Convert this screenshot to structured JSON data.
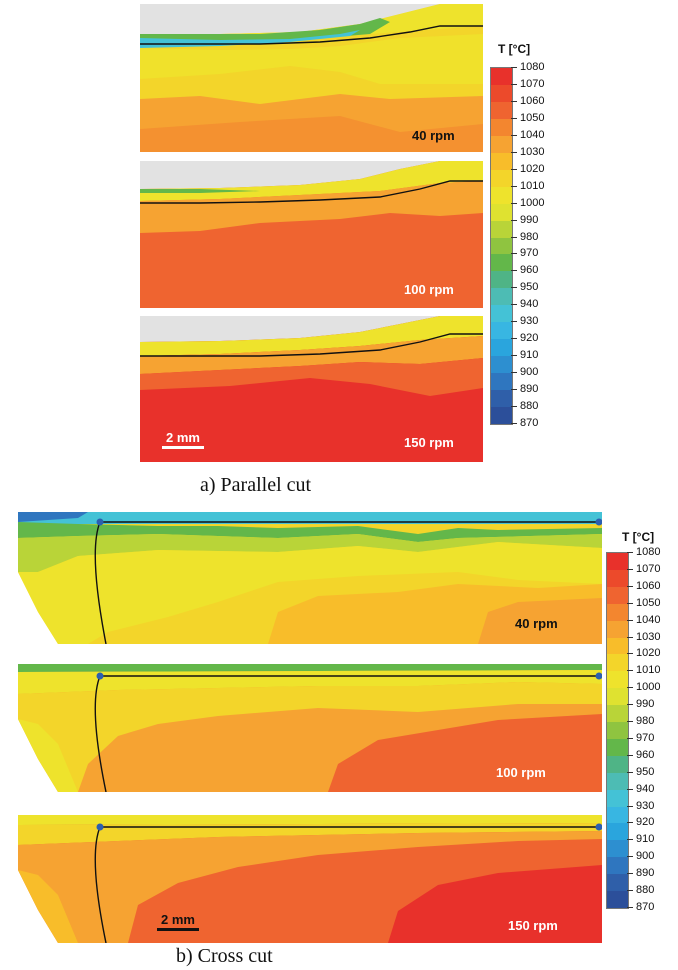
{
  "figure": {
    "part_a": {
      "caption": "a) Parallel cut",
      "panels": [
        {
          "label": "40 rpm",
          "label_dark": true
        },
        {
          "label": "100 rpm",
          "label_dark": false
        },
        {
          "label": "150 rpm",
          "label_dark": false
        }
      ],
      "scale_bar": "2 mm"
    },
    "part_b": {
      "caption": "b) Cross cut",
      "panels": [
        {
          "label": "40 rpm",
          "label_dark": true
        },
        {
          "label": "100 rpm",
          "label_dark": false
        },
        {
          "label": "150 rpm",
          "label_dark": false
        }
      ],
      "scale_bar": "2 mm"
    },
    "legend": {
      "title": "T [°C]",
      "levels": [
        "1080",
        "1070",
        "1060",
        "1050",
        "1040",
        "1030",
        "1020",
        "1010",
        "1000",
        "990",
        "980",
        "970",
        "960",
        "950",
        "940",
        "930",
        "920",
        "910",
        "900",
        "890",
        "880",
        "870"
      ],
      "colors": [
        "#e8312b",
        "#ec4a2b",
        "#ef6430",
        "#f3862f",
        "#f6a332",
        "#f8bd2a",
        "#f3d52a",
        "#eee32c",
        "#dfe230",
        "#b9d438",
        "#8fc440",
        "#63b74a",
        "#4fb486",
        "#4dbcb4",
        "#44c2d6",
        "#38b6e2",
        "#2aa5dd",
        "#2d8fd0",
        "#2f76bf",
        "#2f5fa9",
        "#2c4f9a"
      ],
      "gray": "#e2e2e2",
      "line": "#111111",
      "marker": "#2b5fb0"
    }
  }
}
